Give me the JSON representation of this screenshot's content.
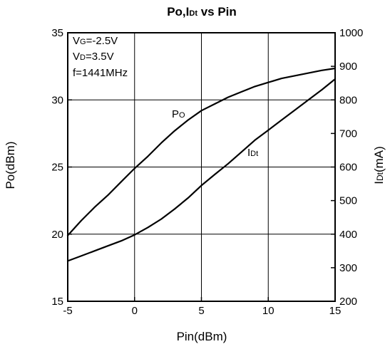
{
  "chart_data": {
    "type": "line",
    "title": {
      "main": "Po,I",
      "sub": "Dt",
      "rest": " vs Pin"
    },
    "xlabel": "Pin(dBm)",
    "ylabel_left": "Po(dBm)",
    "ylabel_right": {
      "main": "I",
      "sub": "Dt",
      "rest": "(mA)"
    },
    "xlim": [
      -5,
      15
    ],
    "ylim_left": [
      15,
      35
    ],
    "ylim_right": [
      200,
      1000
    ],
    "x_ticks": [
      "-5",
      "0",
      "5",
      "10",
      "15"
    ],
    "y_left_ticks": [
      "15",
      "20",
      "25",
      "30",
      "35"
    ],
    "y_right_ticks": [
      "200",
      "300",
      "400",
      "500",
      "600",
      "700",
      "800",
      "900",
      "1000"
    ],
    "grid": true,
    "conditions": [
      {
        "main": "V",
        "sub": "G",
        "rest": "=-2.5V"
      },
      {
        "main": "V",
        "sub": "D",
        "rest": "=3.5V"
      },
      {
        "main": "f=1441MHz",
        "sub": "",
        "rest": ""
      }
    ],
    "series": [
      {
        "name": {
          "main": "P",
          "sub": "O",
          "rest": ""
        },
        "axis": "left",
        "x": [
          -5,
          -4,
          -3,
          -2,
          -1,
          0,
          1,
          2,
          3,
          4,
          5,
          6,
          7,
          8,
          9,
          10,
          11,
          12,
          13,
          14,
          15
        ],
        "values": [
          19.9,
          21.0,
          22.0,
          22.9,
          23.9,
          24.9,
          25.8,
          26.8,
          27.7,
          28.5,
          29.2,
          29.7,
          30.2,
          30.6,
          31.0,
          31.3,
          31.6,
          31.8,
          32.0,
          32.2,
          32.35
        ]
      },
      {
        "name": {
          "main": "I",
          "sub": "Dt",
          "rest": ""
        },
        "axis": "right",
        "x": [
          -5,
          -4,
          -3,
          -2,
          -1,
          0,
          1,
          2,
          3,
          4,
          5,
          6,
          7,
          8,
          9,
          10,
          11,
          12,
          13,
          14,
          15
        ],
        "values": [
          320,
          335,
          350,
          365,
          380,
          398,
          420,
          445,
          475,
          508,
          545,
          578,
          610,
          645,
          680,
          710,
          740,
          770,
          800,
          830,
          862
        ]
      }
    ]
  }
}
